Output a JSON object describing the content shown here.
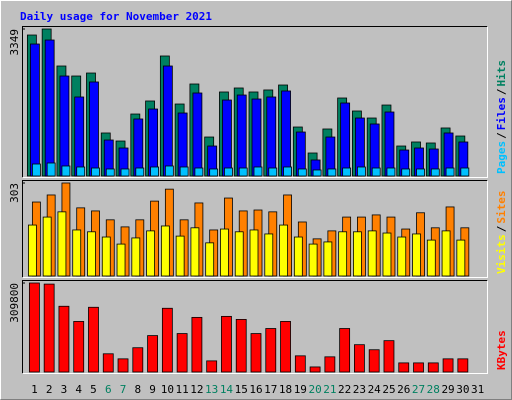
{
  "chart_data": [
    {
      "type": "bar",
      "title": "Daily usage for November 2021",
      "legend_separator": "/",
      "ylim": [
        0,
        3349
      ],
      "yticks": [
        3349
      ],
      "series": [
        {
          "name": "Hits",
          "color": "#008060",
          "values": [
            3212,
            3349,
            2506,
            2278,
            2346,
            980,
            797,
            1412,
            1709,
            2734,
            1640,
            2096,
            888,
            1914,
            2005,
            1914,
            1960,
            2073,
            1116,
            524,
            1071,
            1777,
            1481,
            1321,
            1617,
            683,
            775,
            752,
            1094,
            911,
            null
          ]
        },
        {
          "name": "Files",
          "color": "#0000ff",
          "values": [
            3007,
            3098,
            2278,
            1800,
            2142,
            820,
            638,
            1299,
            1526,
            2506,
            1435,
            1891,
            683,
            1731,
            1845,
            1754,
            1800,
            1937,
            1002,
            365,
            888,
            1663,
            1321,
            1185,
            1458,
            592,
            638,
            615,
            980,
            775,
            null
          ]
        },
        {
          "name": "Pages",
          "color": "#00c0ff",
          "values": [
            273,
            296,
            228,
            205,
            182,
            160,
            160,
            182,
            205,
            228,
            205,
            182,
            160,
            182,
            182,
            205,
            182,
            205,
            160,
            137,
            160,
            182,
            205,
            182,
            182,
            160,
            160,
            160,
            182,
            182,
            null
          ]
        }
      ]
    },
    {
      "type": "bar",
      "ylim": [
        0,
        303
      ],
      "yticks": [
        303
      ],
      "series": [
        {
          "name": "Sites",
          "color": "#ff8000",
          "values": [
            241,
            264,
            303,
            222,
            212,
            183,
            160,
            183,
            244,
            283,
            183,
            238,
            150,
            254,
            212,
            215,
            209,
            264,
            176,
            121,
            147,
            192,
            192,
            199,
            192,
            153,
            206,
            157,
            225,
            157,
            null
          ]
        },
        {
          "name": "Visits",
          "color": "#ffff00",
          "values": [
            166,
            192,
            209,
            150,
            144,
            127,
            104,
            124,
            147,
            163,
            130,
            157,
            108,
            153,
            144,
            150,
            137,
            166,
            127,
            104,
            111,
            144,
            144,
            147,
            140,
            127,
            137,
            117,
            147,
            117,
            null
          ]
        }
      ]
    },
    {
      "type": "bar",
      "ylim": [
        0,
        309800
      ],
      "yticks": [
        309800
      ],
      "categories": [
        "1",
        "2",
        "3",
        "4",
        "5",
        "6",
        "7",
        "8",
        "9",
        "10",
        "11",
        "12",
        "13",
        "14",
        "15",
        "16",
        "17",
        "18",
        "19",
        "20",
        "21",
        "22",
        "23",
        "24",
        "25",
        "26",
        "27",
        "28",
        "29",
        "30",
        "31"
      ],
      "category_colors": [
        "#000000",
        "#000000",
        "#000000",
        "#000000",
        "#000000",
        "#008060",
        "#008060",
        "#000000",
        "#000000",
        "#000000",
        "#000000",
        "#000000",
        "#008060",
        "#008060",
        "#000000",
        "#000000",
        "#000000",
        "#000000",
        "#000000",
        "#008060",
        "#008060",
        "#000000",
        "#000000",
        "#000000",
        "#000000",
        "#000000",
        "#008060",
        "#008060",
        "#000000",
        "#000000",
        "#000000"
      ],
      "series": [
        {
          "name": "KBytes",
          "color": "#ff0000",
          "values": [
            309800,
            306000,
            228800,
            176000,
            225300,
            63400,
            45800,
            84500,
            126700,
            221800,
            133800,
            190100,
            38700,
            193600,
            183100,
            133800,
            151400,
            176000,
            56300,
            17600,
            52800,
            151400,
            95100,
            77500,
            109100,
            31700,
            31700,
            31700,
            45800,
            45800,
            null
          ]
        }
      ]
    }
  ]
}
